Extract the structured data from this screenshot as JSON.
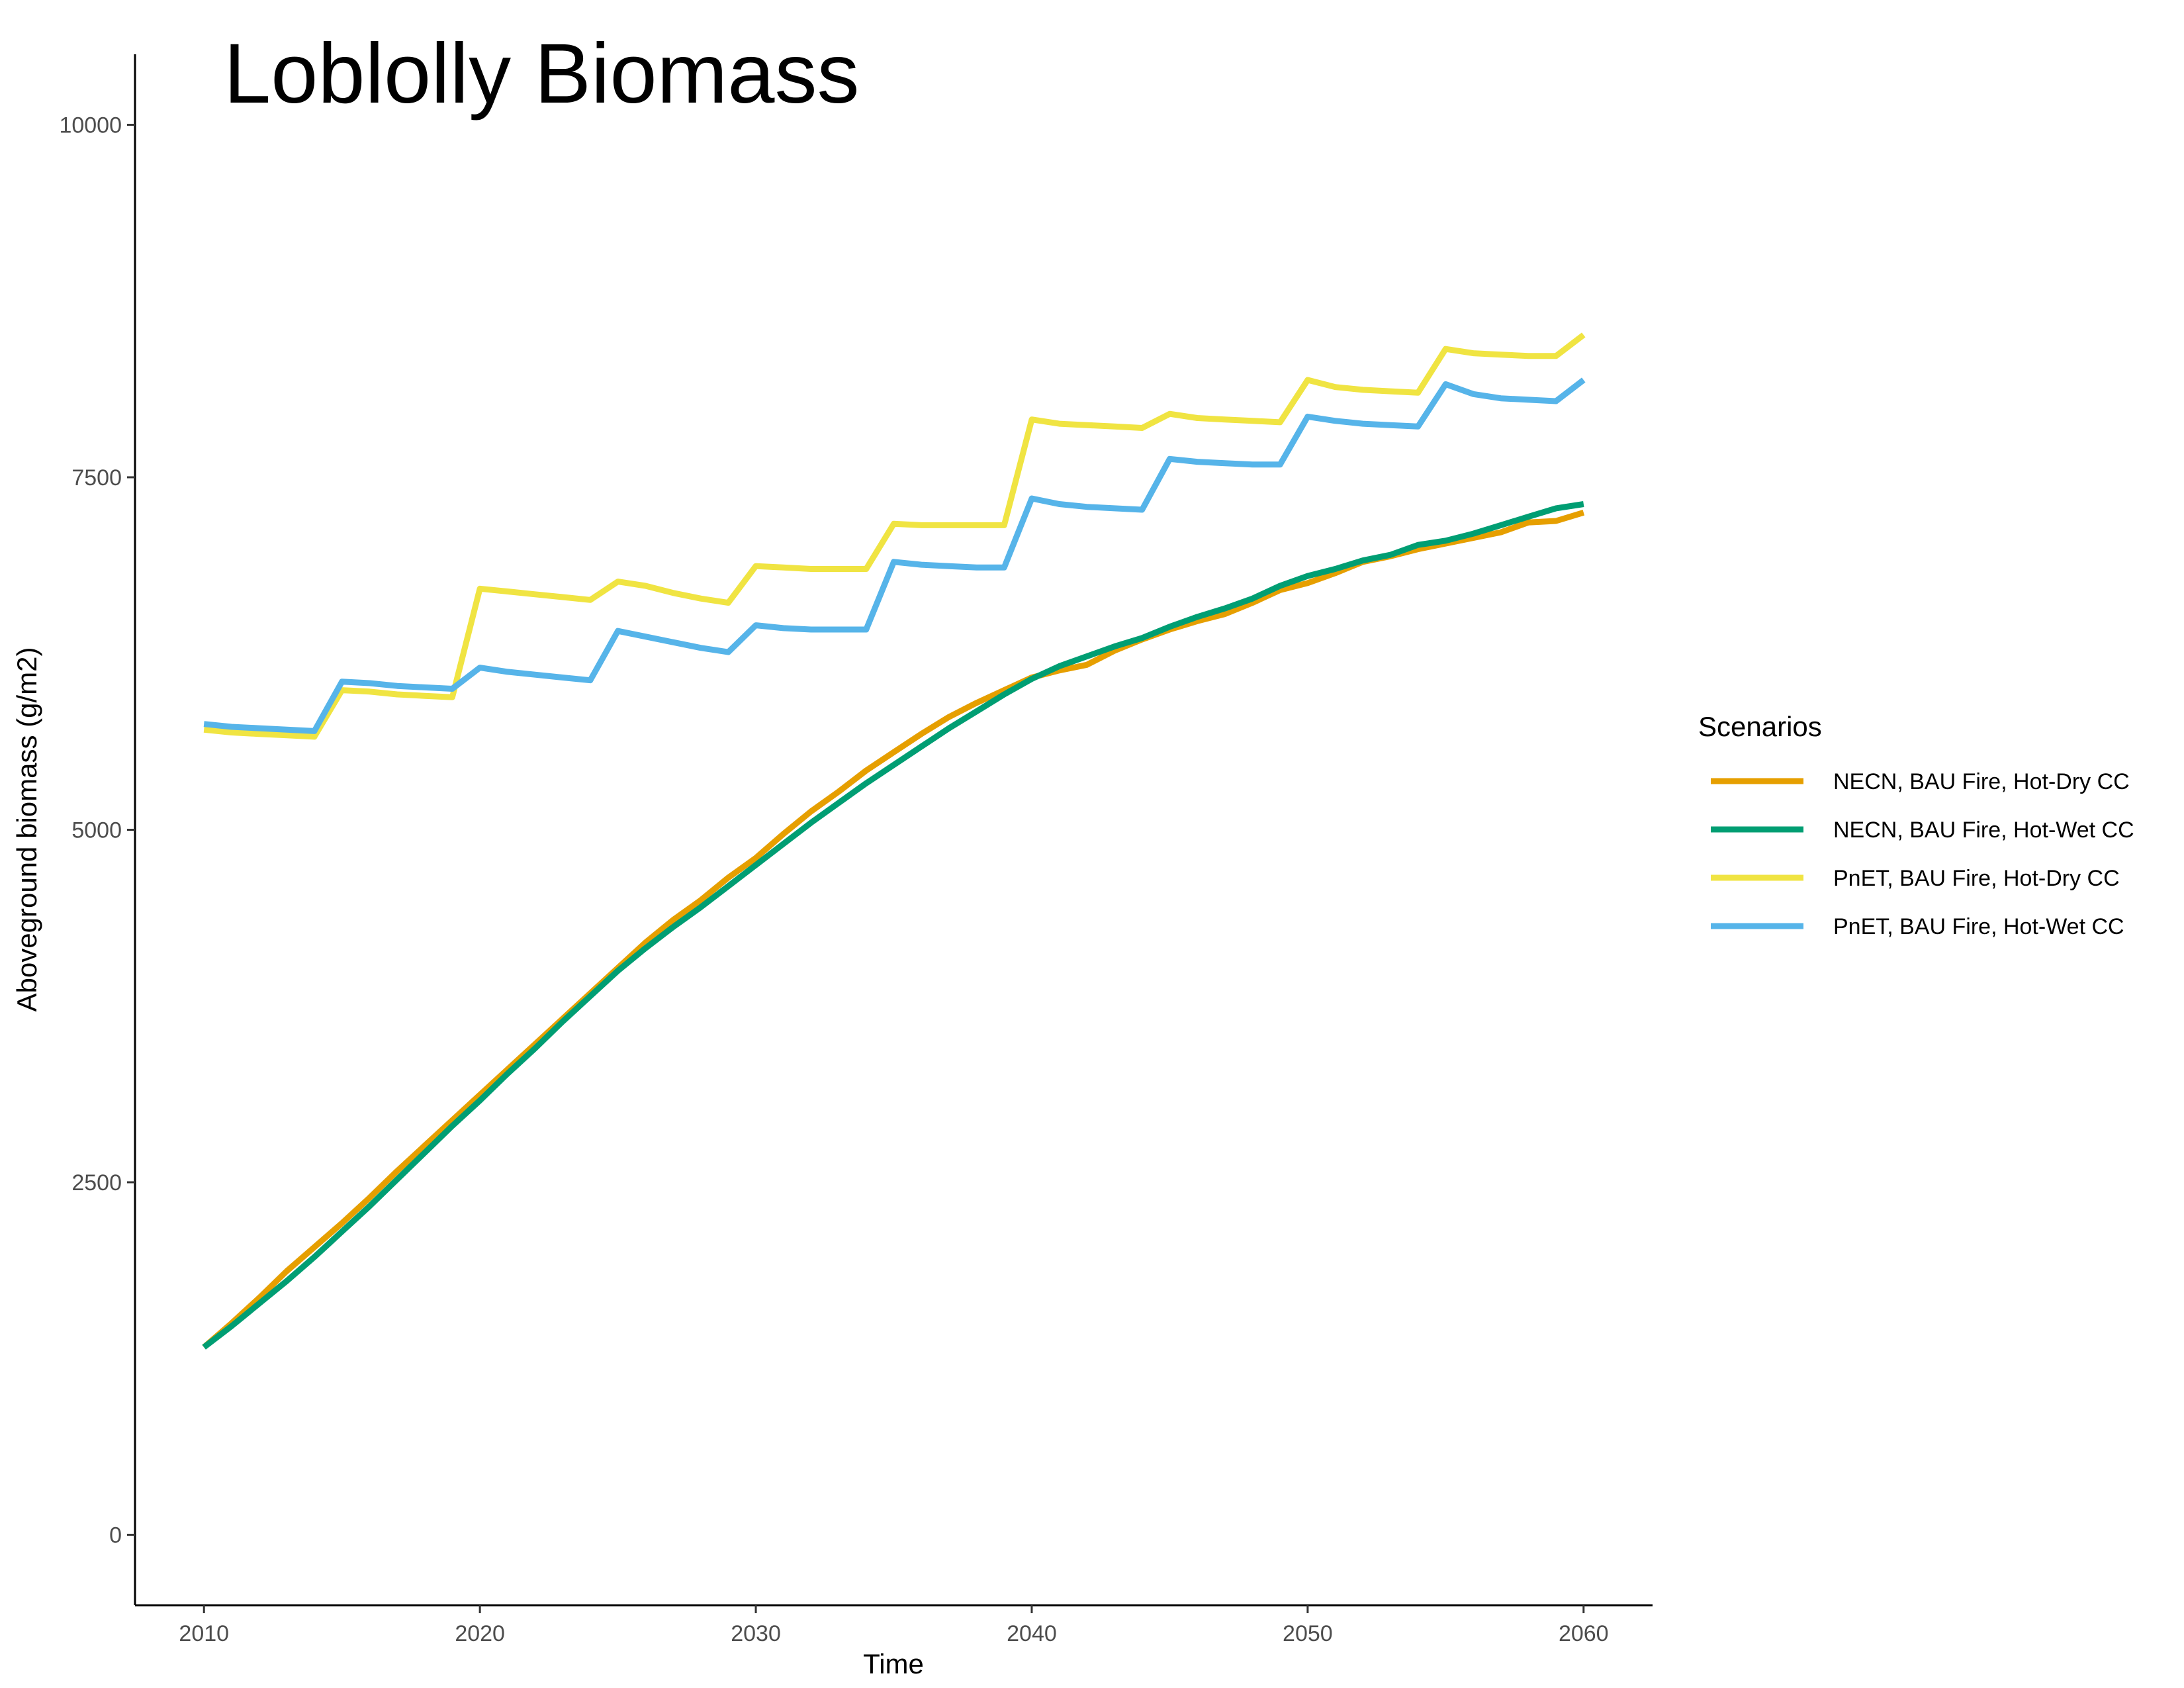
{
  "chart_data": {
    "type": "line",
    "title": "Loblolly Biomass",
    "xlabel": "Time",
    "ylabel": "Aboveground biomass (g/m2)",
    "xlim": [
      2007.5,
      2062.5
    ],
    "ylim": [
      -500,
      10500
    ],
    "xticks": [
      2010,
      2020,
      2030,
      2040,
      2050,
      2060
    ],
    "yticks": [
      0,
      2500,
      5000,
      7500,
      10000
    ],
    "xtick_labels": [
      "2010",
      "2020",
      "2030",
      "2040",
      "2050",
      "2060"
    ],
    "ytick_labels": [
      "0",
      "2500",
      "5000",
      "7500",
      "10000"
    ],
    "grid": false,
    "legend_title": "Scenarios",
    "legend_position": "right",
    "x": [
      2010,
      2011,
      2012,
      2013,
      2014,
      2015,
      2016,
      2017,
      2018,
      2019,
      2020,
      2021,
      2022,
      2023,
      2024,
      2025,
      2026,
      2027,
      2028,
      2029,
      2030,
      2031,
      2032,
      2033,
      2034,
      2035,
      2036,
      2037,
      2038,
      2039,
      2040,
      2041,
      2042,
      2043,
      2044,
      2045,
      2046,
      2047,
      2048,
      2049,
      2050,
      2051,
      2052,
      2053,
      2054,
      2055,
      2056,
      2057,
      2058,
      2059,
      2060
    ],
    "series": [
      {
        "name": "NECN, BAU Fire, Hot-Dry CC",
        "color": "#E69F00",
        "values": [
          1330,
          1500,
          1680,
          1870,
          2040,
          2210,
          2390,
          2580,
          2760,
          2940,
          3120,
          3300,
          3480,
          3660,
          3840,
          4020,
          4200,
          4360,
          4500,
          4660,
          4800,
          4970,
          5130,
          5270,
          5420,
          5550,
          5680,
          5800,
          5900,
          5990,
          6080,
          6130,
          6170,
          6270,
          6350,
          6420,
          6480,
          6530,
          6610,
          6700,
          6750,
          6820,
          6900,
          6940,
          6990,
          7030,
          7070,
          7110,
          7180,
          7190,
          7250
        ]
      },
      {
        "name": "NECN, BAU Fire, Hot-Wet CC",
        "color": "#009E73",
        "values": [
          1330,
          1480,
          1640,
          1800,
          1970,
          2150,
          2330,
          2520,
          2710,
          2900,
          3080,
          3270,
          3450,
          3640,
          3820,
          4000,
          4160,
          4310,
          4450,
          4600,
          4750,
          4900,
          5050,
          5190,
          5330,
          5460,
          5590,
          5720,
          5840,
          5960,
          6070,
          6160,
          6230,
          6300,
          6360,
          6440,
          6510,
          6570,
          6640,
          6730,
          6800,
          6850,
          6910,
          6950,
          7020,
          7050,
          7100,
          7160,
          7220,
          7280,
          7310
        ]
      },
      {
        "name": "PnET, BAU Fire, Hot-Dry CC",
        "color": "#F0E442",
        "values": [
          5710,
          5690,
          5680,
          5670,
          5660,
          5990,
          5980,
          5960,
          5950,
          5940,
          6710,
          6690,
          6670,
          6650,
          6630,
          6760,
          6730,
          6680,
          6640,
          6610,
          6870,
          6860,
          6850,
          6850,
          6850,
          7170,
          7160,
          7160,
          7160,
          7160,
          7910,
          7880,
          7870,
          7860,
          7850,
          7950,
          7920,
          7910,
          7900,
          7890,
          8190,
          8140,
          8120,
          8110,
          8100,
          8410,
          8380,
          8370,
          8360,
          8360,
          8510
        ]
      },
      {
        "name": "PnET, BAU Fire, Hot-Wet CC",
        "color": "#56B4E9",
        "values": [
          5750,
          5730,
          5720,
          5710,
          5700,
          6050,
          6040,
          6020,
          6010,
          6000,
          6150,
          6120,
          6100,
          6080,
          6060,
          6410,
          6370,
          6330,
          6290,
          6260,
          6450,
          6430,
          6420,
          6420,
          6420,
          6900,
          6880,
          6870,
          6860,
          6860,
          7350,
          7310,
          7290,
          7280,
          7270,
          7630,
          7610,
          7600,
          7590,
          7590,
          7930,
          7900,
          7880,
          7870,
          7860,
          8160,
          8090,
          8060,
          8050,
          8040,
          8190
        ]
      }
    ]
  }
}
